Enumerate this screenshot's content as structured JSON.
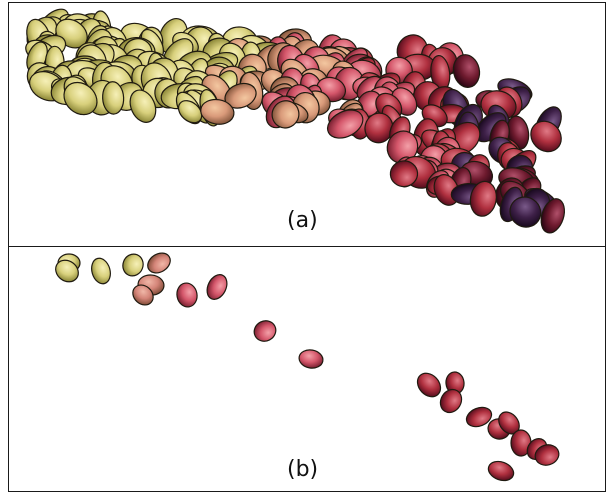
{
  "figure": {
    "panel_a": {
      "label": "(a)"
    },
    "panel_b": {
      "label": "(b)"
    }
  },
  "colors": {
    "cell_yellow": "#d9d38a",
    "cell_pink": "#d85a6c",
    "cell_red": "#b8323f",
    "cell_dark": "#5a1020",
    "outline": "#1a1a1a"
  }
}
